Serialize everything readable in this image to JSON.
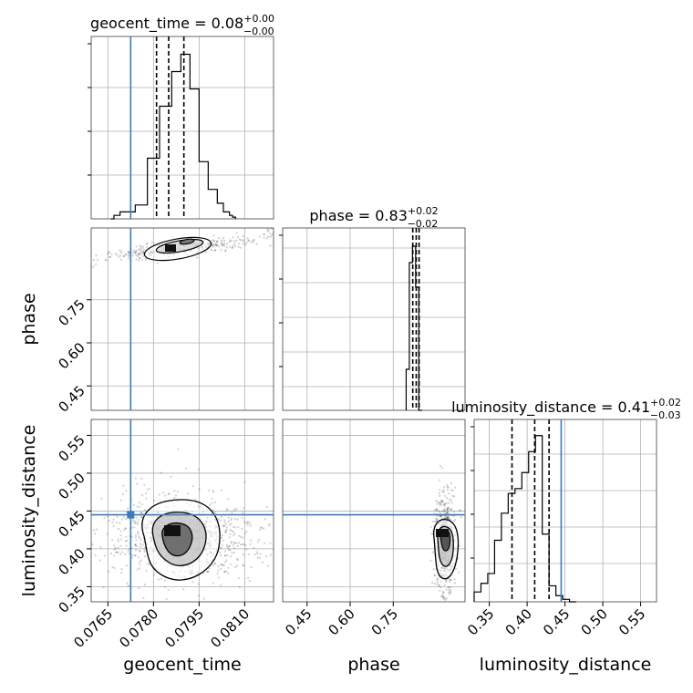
{
  "chart_data": {
    "type": "corner",
    "parameters": [
      "geocent_time",
      "phase",
      "luminosity_distance"
    ],
    "truths": {
      "geocent_time": 0.07725,
      "phase": null,
      "luminosity_distance": 0.445
    },
    "ranges": {
      "geocent_time": [
        0.07595,
        0.08195
      ],
      "phase": [
        0.365,
        1.0
      ],
      "luminosity_distance": [
        0.33,
        0.571
      ]
    },
    "ticks": {
      "geocent_time": [
        "0.0765",
        "0.0780",
        "0.0795",
        "0.0810"
      ],
      "phase": [
        "0.45",
        "0.60",
        "0.75"
      ],
      "luminosity_distance": [
        "0.35",
        "0.40",
        "0.45",
        "0.50",
        "0.55"
      ]
    },
    "tick_values": {
      "geocent_time": [
        0.0765,
        0.078,
        0.0795,
        0.081
      ],
      "phase": [
        0.45,
        0.6,
        0.75
      ],
      "luminosity_distance": [
        0.35,
        0.4,
        0.45,
        0.5,
        0.55
      ]
    },
    "titles": [
      {
        "name": "geocent_time",
        "median": "0.08",
        "plus": "+0.00",
        "minus": "−0.00"
      },
      {
        "name": "phase",
        "median": "0.83",
        "plus": "+0.02",
        "minus": "−0.02"
      },
      {
        "name": "luminosity_distance",
        "median": "0.41",
        "plus": "+0.02",
        "minus": "−0.03"
      }
    ],
    "quantiles": {
      "geocent_time": [
        0.0781,
        0.0785,
        0.079
      ],
      "phase": [
        0.818,
        0.83,
        0.84
      ],
      "luminosity_distance": [
        0.38,
        0.41,
        0.429
      ]
    },
    "histograms": {
      "geocent_time": {
        "edges": [
          0.0766,
          0.0767,
          0.0768,
          0.0769,
          0.077,
          0.0771,
          0.0772,
          0.0773,
          0.0774,
          0.0775,
          0.0776,
          0.0777,
          0.0778,
          0.0779,
          0.078,
          0.0781,
          0.0782,
          0.0783,
          0.0784,
          0.0785,
          0.0786,
          0.0787,
          0.0788,
          0.0789,
          0.079,
          0.0791,
          0.0792,
          0.0793,
          0.0794,
          0.0795,
          0.0796,
          0.0797,
          0.0798,
          0.0799,
          0.08,
          0.0801,
          0.0802,
          0.0803,
          0.0804,
          0.0805,
          0.0806,
          0.0807
        ],
        "counts": [
          0,
          0.02,
          0.02,
          0.04,
          0.04,
          0.04,
          0.04,
          0.04,
          0.08,
          0.08,
          0.08,
          0.08,
          0.35,
          0.35,
          0.35,
          0.35,
          0.65,
          0.65,
          0.65,
          0.65,
          0.85,
          0.85,
          0.85,
          0.95,
          0.95,
          0.95,
          0.75,
          0.75,
          0.75,
          0.33,
          0.33,
          0.33,
          0.17,
          0.17,
          0.17,
          0.09,
          0.09,
          0.04,
          0.04,
          0.02,
          0.01
        ],
        "xmin": 0.07595,
        "xmax": 0.08195
      },
      "phase": {
        "edges": [
          0.795,
          0.806,
          0.817,
          0.828,
          0.839,
          0.85
        ],
        "counts": [
          0.25,
          0.9,
          1.0,
          0.75,
          0.0
        ],
        "xmin": 0.365,
        "xmax": 1.0
      },
      "luminosity_distance": {
        "edges": [
          0.33,
          0.339,
          0.348,
          0.357,
          0.366,
          0.375,
          0.384,
          0.393,
          0.402,
          0.411,
          0.42,
          0.429,
          0.438,
          0.447,
          0.456,
          0.465
        ],
        "counts": [
          0.08,
          0.15,
          0.23,
          0.5,
          0.72,
          0.88,
          0.92,
          1.05,
          1.22,
          1.35,
          0.55,
          0.13,
          0.05,
          0.02,
          0.0
        ],
        "xmin": 0.33,
        "xmax": 0.571
      }
    }
  }
}
